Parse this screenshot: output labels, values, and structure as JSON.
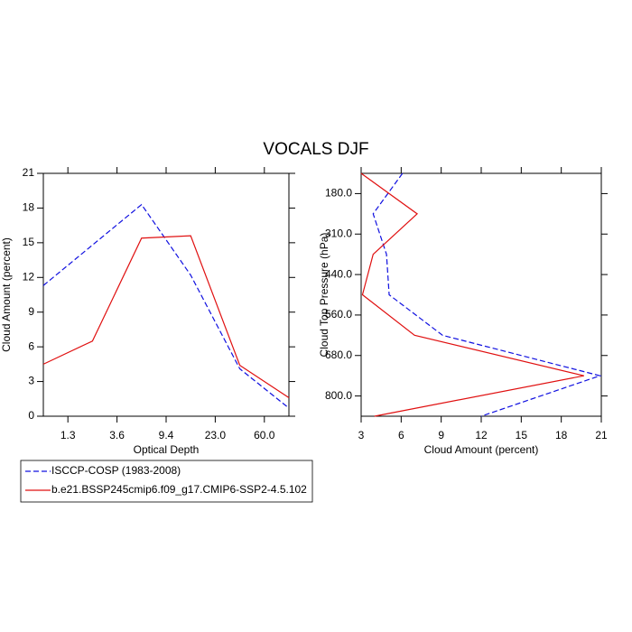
{
  "title": "VOCALS DJF",
  "chart_data": [
    {
      "type": "line",
      "xlabel": "Optical Depth",
      "ylabel": "Cloud Amount (percent)",
      "x": [
        0,
        1,
        2,
        3,
        4,
        5
      ],
      "xlim": [
        0,
        5
      ],
      "xticks": [
        {
          "value": 0.5,
          "label": "1.3"
        },
        {
          "value": 1.5,
          "label": "3.6"
        },
        {
          "value": 2.5,
          "label": "9.4"
        },
        {
          "value": 3.5,
          "label": "23.0"
        },
        {
          "value": 4.5,
          "label": "60.0"
        }
      ],
      "ylim": [
        0,
        21
      ],
      "yticks": [
        0,
        3,
        6,
        9,
        12,
        15,
        18,
        21
      ],
      "series": [
        {
          "name": "ISCCP-COSP (1983-2008)",
          "color": "#1010e0",
          "dashed": true,
          "values": [
            11.3,
            14.8,
            18.3,
            12.2,
            4.1,
            0.7
          ]
        },
        {
          "name": "b.e21.BSSP245cmip6.f09_g17.CMIP6-SSP2-4.5.102",
          "color": "#e01010",
          "dashed": false,
          "values": [
            4.5,
            6.5,
            15.4,
            15.6,
            4.4,
            1.6
          ]
        }
      ]
    },
    {
      "type": "line",
      "orientation": "horizontal",
      "xlabel": "Cloud Amount (percent)",
      "ylabel": "Cloud Top Pressure (hPa)",
      "y": [
        0,
        1,
        2,
        3,
        4,
        5,
        6
      ],
      "ylim": [
        6,
        0
      ],
      "yticks": [
        {
          "value": 0.5,
          "label": "180.0"
        },
        {
          "value": 1.5,
          "label": "310.0"
        },
        {
          "value": 2.5,
          "label": "440.0"
        },
        {
          "value": 3.5,
          "label": "560.0"
        },
        {
          "value": 4.5,
          "label": "680.0"
        },
        {
          "value": 5.5,
          "label": "800.0"
        }
      ],
      "xlim": [
        3,
        21
      ],
      "xticks": [
        3,
        6,
        9,
        12,
        15,
        18,
        21
      ],
      "series": [
        {
          "color": "#1010e0",
          "dashed": true,
          "values": [
            6.1,
            3.9,
            4.9,
            5.1,
            9.1,
            20.9,
            12.0
          ]
        },
        {
          "color": "#e01010",
          "dashed": false,
          "values": [
            3.0,
            7.2,
            3.9,
            3.1,
            7.0,
            19.7,
            4.0
          ]
        }
      ]
    }
  ]
}
